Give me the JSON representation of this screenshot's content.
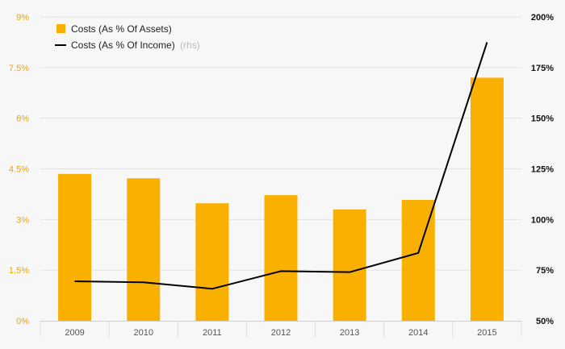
{
  "chart_data": {
    "type": "bar",
    "categories": [
      "2009",
      "2010",
      "2011",
      "2012",
      "2013",
      "2014",
      "2015"
    ],
    "series": [
      {
        "name": "Costs (As % Of Assets)",
        "kind": "bar",
        "axis": "left",
        "values": [
          4.35,
          4.22,
          3.48,
          3.72,
          3.3,
          3.58,
          7.2
        ]
      },
      {
        "name": "Costs (As % Of Income)",
        "kind": "line",
        "axis": "right",
        "values": [
          69.5,
          69.0,
          65.8,
          74.5,
          74.0,
          83.5,
          187.5
        ]
      }
    ],
    "left_axis": {
      "ylim": [
        0,
        9
      ],
      "ticks": [
        0,
        1.5,
        3,
        4.5,
        6,
        7.5,
        9
      ],
      "tick_labels": [
        "0%",
        "1.5%",
        "3%",
        "4.5%",
        "6%",
        "7.5%",
        "9%"
      ]
    },
    "right_axis": {
      "ylim": [
        50,
        200
      ],
      "ticks": [
        50,
        75,
        100,
        125,
        150,
        175,
        200
      ],
      "tick_labels": [
        "50%",
        "75%",
        "100%",
        "125%",
        "150%",
        "175%",
        "200%"
      ]
    },
    "legend": {
      "position": "top-left",
      "rhs_suffix": "(rhs)"
    },
    "grid": true,
    "colors": {
      "bar": "#f9b000",
      "line": "#000000",
      "left_tick": "#e8a800",
      "right_tick": "#111111",
      "x_tick": "#555555",
      "grid": "#e2e2e2",
      "rhs_suffix": "#bbbbbb",
      "background": "#f7f7f7"
    }
  }
}
